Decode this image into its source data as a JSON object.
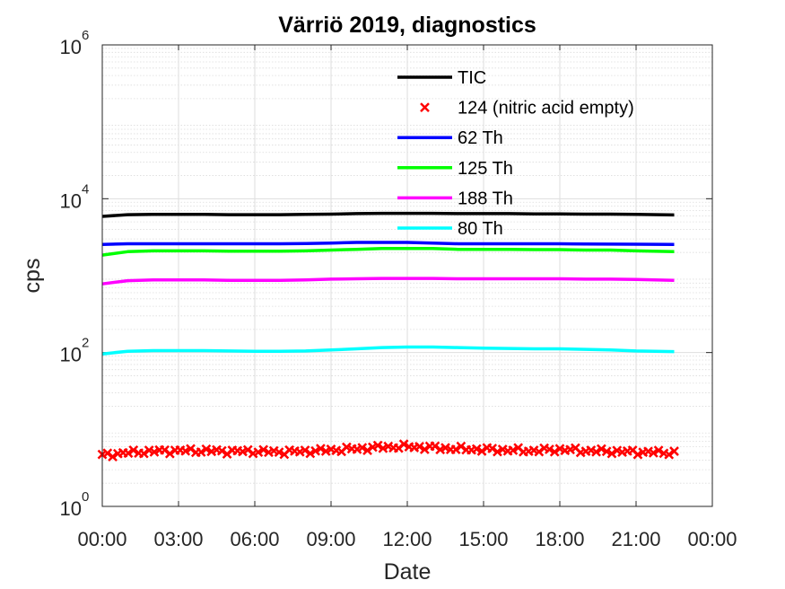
{
  "chart_data": {
    "type": "line",
    "title": "Värriö 2019, diagnostics",
    "xlabel": "Date",
    "ylabel": "cps",
    "x_ticks": [
      "00:00",
      "03:00",
      "06:00",
      "09:00",
      "12:00",
      "15:00",
      "18:00",
      "21:00",
      "00:00"
    ],
    "x_range_hours": [
      0,
      24
    ],
    "y_scale": "log",
    "ylim": [
      1,
      1000000
    ],
    "y_ticks": [
      {
        "base": "10",
        "exp": "0",
        "value": 1
      },
      {
        "base": "10",
        "exp": "2",
        "value": 100
      },
      {
        "base": "10",
        "exp": "4",
        "value": 10000
      },
      {
        "base": "10",
        "exp": "6",
        "value": 1000000
      }
    ],
    "grid": true,
    "minor_grid": true,
    "legend_position": "top-right (inside)",
    "x": [
      0,
      1,
      2,
      3,
      4,
      5,
      6,
      7,
      8,
      9,
      10,
      11,
      12,
      13,
      14,
      15,
      16,
      17,
      18,
      19,
      20,
      21,
      22.5
    ],
    "series": [
      {
        "name": "TIC",
        "color": "#000000",
        "style": "line",
        "values": [
          5900,
          6200,
          6250,
          6250,
          6250,
          6200,
          6200,
          6200,
          6250,
          6300,
          6400,
          6450,
          6450,
          6450,
          6400,
          6400,
          6400,
          6350,
          6350,
          6300,
          6300,
          6250,
          6150
        ]
      },
      {
        "name": "124 (nitric acid empty)",
        "color": "#ff0000",
        "style": "marker-x",
        "values": [
          4.6,
          5.0,
          5.2,
          5.3,
          5.3,
          5.2,
          5.2,
          5.1,
          5.2,
          5.4,
          5.6,
          5.9,
          6.0,
          5.8,
          5.6,
          5.5,
          5.4,
          5.3,
          5.5,
          5.3,
          5.2,
          5.1,
          5.0
        ]
      },
      {
        "name": "62 Th",
        "color": "#0000ff",
        "style": "line",
        "values": [
          2550,
          2600,
          2600,
          2600,
          2600,
          2600,
          2600,
          2600,
          2620,
          2650,
          2700,
          2700,
          2700,
          2650,
          2600,
          2600,
          2600,
          2600,
          2600,
          2580,
          2570,
          2560,
          2550
        ]
      },
      {
        "name": "125 Th",
        "color": "#00ff00",
        "style": "line",
        "values": [
          1850,
          2050,
          2100,
          2100,
          2100,
          2080,
          2080,
          2080,
          2100,
          2150,
          2200,
          2250,
          2250,
          2250,
          2200,
          2200,
          2200,
          2180,
          2180,
          2150,
          2150,
          2100,
          2050
        ]
      },
      {
        "name": "188 Th",
        "color": "#ff00ff",
        "style": "line",
        "values": [
          780,
          860,
          880,
          880,
          880,
          870,
          870,
          870,
          880,
          900,
          910,
          920,
          920,
          920,
          910,
          910,
          910,
          910,
          910,
          900,
          900,
          890,
          870
        ]
      },
      {
        "name": "80 Th",
        "color": "#00ffff",
        "style": "line",
        "values": [
          96,
          104,
          106,
          106,
          106,
          105,
          104,
          104,
          105,
          108,
          112,
          116,
          118,
          118,
          116,
          114,
          113,
          112,
          112,
          110,
          108,
          105,
          103
        ]
      }
    ]
  }
}
